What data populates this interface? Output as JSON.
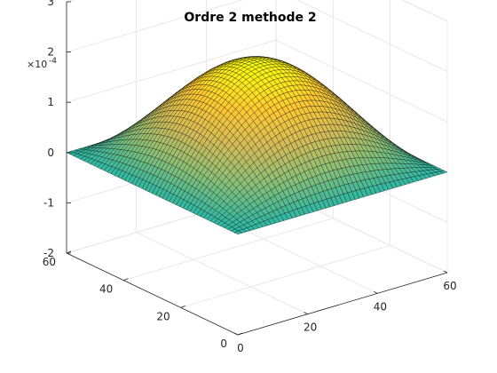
{
  "chart_data": {
    "type": "surface",
    "title": "Ordre 2 methode 2",
    "xlabel": "",
    "ylabel": "",
    "zlabel": "",
    "x_ticks": [
      0,
      20,
      40,
      60
    ],
    "y_ticks": [
      0,
      20,
      40,
      60
    ],
    "z_ticks": [
      -2,
      -1,
      0,
      1,
      2,
      3
    ],
    "z_tick_labels": [
      "-2",
      "-1",
      "0",
      "1",
      "2",
      "3"
    ],
    "z_exponent_label": "×10",
    "z_exponent": "-4",
    "xlim": [
      0,
      60
    ],
    "ylim": [
      0,
      60
    ],
    "zlim": [
      -2,
      3
    ],
    "grid": true,
    "colormap": "parula",
    "colormap_colors": [
      "#352a87",
      "#0f5cdd",
      "#1481d6",
      "#06a4ca",
      "#2eb7a4",
      "#87bf77",
      "#d1bb59",
      "#fec832",
      "#f9fb0e"
    ],
    "surface_formula": "z = 2e-4 * sin(pi*x/60) * sin(pi*y/60)",
    "amplitude": 2.0,
    "mesh_count": 50,
    "edge_color": "#000000"
  }
}
